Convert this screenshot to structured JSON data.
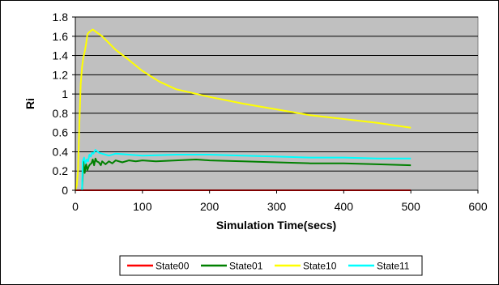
{
  "chart_data": {
    "type": "line",
    "title": "",
    "xlabel": "Simulation Time(secs)",
    "ylabel": "Ri",
    "xlim": [
      0,
      600
    ],
    "ylim": [
      0,
      1.8
    ],
    "x_ticks": [
      "0",
      "100",
      "200",
      "300",
      "400",
      "500",
      "600"
    ],
    "y_ticks": [
      "0",
      "0.2",
      "0.4",
      "0.6",
      "0.8",
      "1",
      "1.2",
      "1.4",
      "1.6",
      "1.8"
    ],
    "grid": true,
    "legend_position": "bottom",
    "plot_background": "#c0c0c0",
    "series": [
      {
        "name": "State00",
        "color": "#ff0000",
        "x": [
          0,
          100,
          200,
          300,
          400,
          500
        ],
        "y": [
          0,
          0,
          0,
          0,
          0,
          0
        ]
      },
      {
        "name": "State01",
        "color": "#008000",
        "x": [
          10,
          12,
          14,
          16,
          18,
          20,
          22,
          24,
          26,
          28,
          30,
          32,
          35,
          38,
          40,
          45,
          50,
          55,
          60,
          70,
          80,
          90,
          100,
          120,
          150,
          180,
          200,
          250,
          300,
          350,
          400,
          450,
          500
        ],
        "y": [
          0,
          0.3,
          0.18,
          0.27,
          0.21,
          0.25,
          0.27,
          0.28,
          0.32,
          0.26,
          0.33,
          0.3,
          0.29,
          0.26,
          0.3,
          0.27,
          0.3,
          0.28,
          0.31,
          0.29,
          0.31,
          0.3,
          0.31,
          0.3,
          0.31,
          0.32,
          0.31,
          0.3,
          0.29,
          0.28,
          0.28,
          0.27,
          0.26
        ]
      },
      {
        "name": "State10",
        "color": "#ffff00",
        "x": [
          0,
          2,
          4,
          6,
          8,
          10,
          12,
          14,
          16,
          18,
          20,
          22,
          24,
          26,
          28,
          30,
          40,
          50,
          60,
          75,
          100,
          125,
          150,
          200,
          250,
          300,
          350,
          400,
          450,
          500
        ],
        "y": [
          0,
          0.05,
          0.2,
          0.7,
          1.1,
          1.28,
          1.38,
          1.44,
          1.52,
          1.62,
          1.64,
          1.65,
          1.66,
          1.67,
          1.66,
          1.65,
          1.6,
          1.53,
          1.46,
          1.38,
          1.24,
          1.13,
          1.05,
          0.97,
          0.9,
          0.84,
          0.78,
          0.74,
          0.7,
          0.65
        ]
      },
      {
        "name": "State11",
        "color": "#00ffff",
        "x": [
          10,
          11,
          13,
          15,
          17,
          19,
          21,
          23,
          25,
          27,
          30,
          35,
          40,
          50,
          60,
          80,
          100,
          150,
          200,
          250,
          300,
          350,
          400,
          450,
          500
        ],
        "y": [
          0,
          0.3,
          0.34,
          0.28,
          0.32,
          0.3,
          0.37,
          0.35,
          0.39,
          0.38,
          0.42,
          0.39,
          0.38,
          0.36,
          0.38,
          0.37,
          0.36,
          0.37,
          0.37,
          0.36,
          0.35,
          0.34,
          0.34,
          0.33,
          0.33
        ]
      }
    ]
  }
}
